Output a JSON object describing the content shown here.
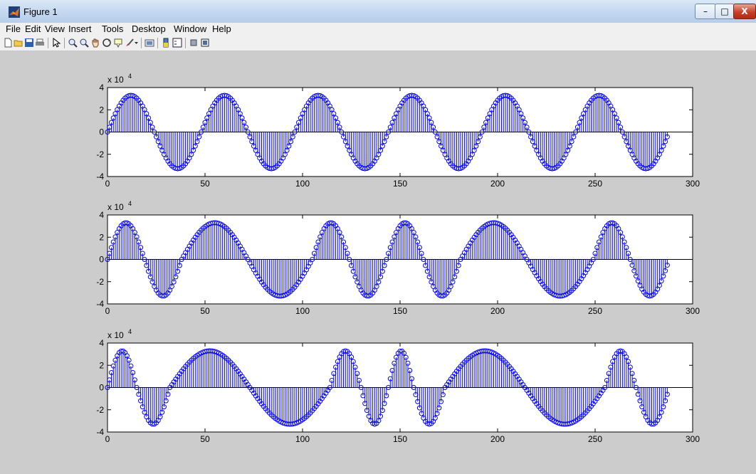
{
  "window": {
    "title": "Figure 1",
    "minimize_glyph": "–",
    "maximize_glyph": "□",
    "close_glyph": "X"
  },
  "menu": [
    "File",
    "Edit",
    "View",
    "Insert",
    "Tools",
    "Desktop",
    "Window",
    "Help"
  ],
  "toolbar": {
    "icons": [
      "new-figure-icon",
      "open-file-icon",
      "save-icon",
      "print-icon",
      "edit-plot-arrow-icon",
      "zoom-in-icon",
      "zoom-out-icon",
      "pan-hand-icon",
      "rotate-3d-icon",
      "data-cursor-icon",
      "brush-icon",
      "brush-dropdown-icon",
      "link-plot-icon",
      "insert-colorbar-icon",
      "insert-legend-icon",
      "hide-plot-tools-icon",
      "show-plot-tools-icon"
    ]
  },
  "colors": {
    "stem": "#0000ff",
    "axes_bg": "#ffffff",
    "figure_bg": "#cccccc"
  },
  "chart_data": [
    {
      "type": "stem",
      "exponent_label": "x 10",
      "exponent_power": "4",
      "xlim": [
        0,
        300
      ],
      "ylim": [
        -4,
        4
      ],
      "xticks": [
        0,
        50,
        100,
        150,
        200,
        250,
        300
      ],
      "yticks": [
        4,
        2,
        0,
        -2,
        -4
      ],
      "n_samples": 288,
      "amplitude": 3.3,
      "zero_crossings": [
        0,
        24,
        48,
        72,
        96,
        120,
        144,
        168,
        192,
        216,
        240,
        264,
        288
      ],
      "first_lobe_sign": 1,
      "marker": "circle"
    },
    {
      "type": "stem",
      "exponent_label": "x 10",
      "exponent_power": "4",
      "xlim": [
        0,
        300
      ],
      "ylim": [
        -4,
        4
      ],
      "xticks": [
        0,
        50,
        100,
        150,
        200,
        250,
        300
      ],
      "yticks": [
        4,
        2,
        0,
        -2,
        -4
      ],
      "n_samples": 288,
      "amplitude": 3.3,
      "zero_crossings": [
        0,
        19,
        38,
        72,
        105,
        124,
        143,
        162,
        181,
        215,
        249,
        268,
        288
      ],
      "first_lobe_sign": 1,
      "marker": "circle"
    },
    {
      "type": "stem",
      "exponent_label": "x 10",
      "exponent_power": "4",
      "xlim": [
        0,
        300
      ],
      "ylim": [
        -4,
        4
      ],
      "xticks": [
        0,
        50,
        100,
        150,
        200,
        250,
        300
      ],
      "yticks": [
        4,
        2,
        0,
        -2,
        -4
      ],
      "n_samples": 288,
      "amplitude": 3.3,
      "zero_crossings": [
        0,
        15,
        32,
        73,
        114,
        130,
        144,
        157,
        173,
        214,
        255,
        271,
        288
      ],
      "first_lobe_sign": 1,
      "marker": "circle"
    }
  ]
}
